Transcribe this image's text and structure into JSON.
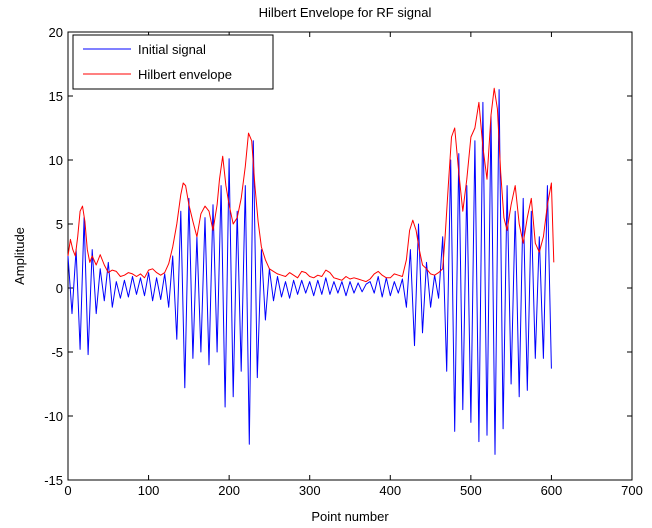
{
  "chart_data": {
    "type": "line",
    "title": "Hilbert Envelope for RF signal",
    "xlabel": "Point number",
    "ylabel": "Amplitude",
    "xlim": [
      0,
      700
    ],
    "ylim": [
      -15,
      20
    ],
    "xticks": [
      0,
      100,
      200,
      300,
      400,
      500,
      600,
      700
    ],
    "yticks": [
      -15,
      -10,
      -5,
      0,
      5,
      10,
      15,
      20
    ],
    "grid": false,
    "legend": "top-left",
    "series": [
      {
        "name": "Initial signal",
        "color": "#0000ff",
        "x": [
          0,
          5,
          10,
          15,
          20,
          25,
          30,
          35,
          40,
          45,
          50,
          55,
          60,
          65,
          70,
          75,
          80,
          85,
          90,
          95,
          100,
          105,
          110,
          115,
          120,
          125,
          130,
          135,
          140,
          145,
          150,
          155,
          160,
          165,
          170,
          175,
          180,
          185,
          190,
          195,
          200,
          205,
          210,
          215,
          220,
          225,
          230,
          235,
          240,
          245,
          250,
          255,
          260,
          265,
          270,
          275,
          280,
          285,
          290,
          295,
          300,
          305,
          310,
          315,
          320,
          325,
          330,
          335,
          340,
          345,
          350,
          355,
          360,
          365,
          370,
          375,
          380,
          385,
          390,
          395,
          400,
          405,
          410,
          415,
          420,
          425,
          430,
          435,
          440,
          445,
          450,
          455,
          460,
          465,
          470,
          475,
          480,
          485,
          490,
          495,
          500,
          505,
          510,
          515,
          520,
          525,
          530,
          535,
          540,
          545,
          550,
          555,
          560,
          565,
          570,
          575,
          580,
          585,
          590,
          595,
          600
        ],
        "values": [
          2.5,
          -2,
          3,
          -4.8,
          5.5,
          -5.2,
          3,
          -2,
          1.5,
          -1,
          2,
          -1.5,
          0.5,
          -0.8,
          0.6,
          -0.7,
          0.9,
          -0.5,
          0.8,
          -0.6,
          1.2,
          -1.0,
          0.8,
          -0.9,
          1.1,
          -1.5,
          2.5,
          -4,
          6,
          -7.8,
          7,
          -5.5,
          4,
          -5,
          5.5,
          -6,
          6.5,
          -5,
          8,
          -9.3,
          10.1,
          -8.5,
          6,
          -6.5,
          8,
          -12.2,
          11.5,
          -7,
          3,
          -2.5,
          1.5,
          -1.0,
          0.9,
          -0.7,
          0.5,
          -0.8,
          0.6,
          -0.5,
          0.6,
          -0.4,
          0.5,
          -0.6,
          0.6,
          -0.5,
          0.8,
          -0.5,
          0.5,
          -0.4,
          0.5,
          -0.6,
          0.5,
          -0.4,
          0.4,
          -0.3,
          0.3,
          0.5,
          -0.4,
          0.9,
          -0.7,
          0.8,
          -0.6,
          0.5,
          -0.4,
          0.7,
          -1.5,
          3,
          -4.5,
          5,
          -3.5,
          2,
          -1.5,
          1,
          -0.8,
          4,
          -6.5,
          10,
          -11.2,
          10.5,
          -9.5,
          8,
          -10.5,
          11.5,
          -12,
          14.5,
          -11.5,
          13.5,
          -13,
          15.5,
          -11,
          8,
          -7.5,
          6,
          -8.5,
          7,
          -8,
          6,
          -5.5,
          4,
          -5.5,
          8,
          -6.3
        ]
      },
      {
        "name": "Hilbert envelope",
        "color": "#ff0000",
        "x": [
          0,
          3,
          6,
          9,
          12,
          15,
          18,
          21,
          24,
          27,
          30,
          35,
          40,
          45,
          50,
          55,
          60,
          65,
          70,
          75,
          80,
          85,
          90,
          95,
          100,
          105,
          110,
          115,
          120,
          125,
          130,
          135,
          140,
          143,
          146,
          150,
          155,
          160,
          165,
          170,
          175,
          180,
          185,
          188,
          192,
          196,
          200,
          205,
          210,
          215,
          220,
          224,
          228,
          232,
          236,
          240,
          245,
          250,
          255,
          260,
          265,
          270,
          275,
          280,
          285,
          290,
          295,
          300,
          305,
          310,
          315,
          320,
          325,
          330,
          335,
          340,
          345,
          350,
          355,
          360,
          365,
          370,
          375,
          380,
          385,
          390,
          395,
          400,
          405,
          410,
          415,
          420,
          424,
          428,
          432,
          436,
          440,
          445,
          450,
          455,
          460,
          465,
          468,
          472,
          476,
          480,
          485,
          490,
          495,
          500,
          505,
          510,
          515,
          520,
          525,
          529,
          533,
          537,
          541,
          545,
          550,
          555,
          560,
          565,
          570,
          575,
          580,
          585,
          590,
          595,
          600,
          603
        ],
        "values": [
          2.5,
          3.8,
          3.0,
          2.5,
          4.0,
          6.0,
          6.4,
          5.2,
          3.0,
          2.0,
          2.5,
          1.8,
          2.6,
          1.8,
          1.2,
          1.4,
          1.3,
          0.9,
          1.0,
          1.2,
          1.1,
          0.9,
          1.1,
          0.8,
          1.4,
          1.5,
          1.2,
          1.0,
          1.2,
          1.9,
          3.2,
          5.0,
          7.3,
          8.2,
          8.0,
          6.5,
          5.2,
          4.0,
          5.8,
          6.4,
          6.0,
          4.5,
          6.5,
          8.5,
          10.3,
          8.0,
          6.5,
          5.0,
          5.5,
          7.0,
          9.5,
          12.1,
          11.5,
          8.0,
          5.2,
          3.2,
          2.2,
          1.5,
          1.3,
          1.1,
          1.0,
          0.9,
          1.2,
          1.0,
          0.8,
          1.3,
          1.2,
          0.9,
          0.8,
          1.0,
          0.9,
          1.4,
          1.2,
          0.8,
          0.7,
          0.6,
          0.9,
          0.7,
          0.8,
          0.7,
          0.6,
          0.5,
          0.7,
          1.1,
          1.3,
          1.0,
          0.8,
          0.8,
          1.1,
          1.0,
          0.9,
          2.2,
          4.5,
          5.3,
          4.5,
          3.0,
          1.8,
          1.5,
          1.1,
          1.0,
          1.2,
          1.5,
          4.0,
          8.0,
          11.8,
          12.5,
          9.0,
          6.0,
          8.5,
          11.8,
          12.5,
          14.5,
          11.0,
          8.5,
          13.5,
          15.6,
          14.0,
          9.0,
          5.5,
          4.5,
          6.5,
          8.0,
          5.0,
          3.5,
          5.5,
          7.0,
          3.5,
          2.8,
          4.0,
          6.5,
          8.2,
          2.0
        ]
      }
    ]
  }
}
